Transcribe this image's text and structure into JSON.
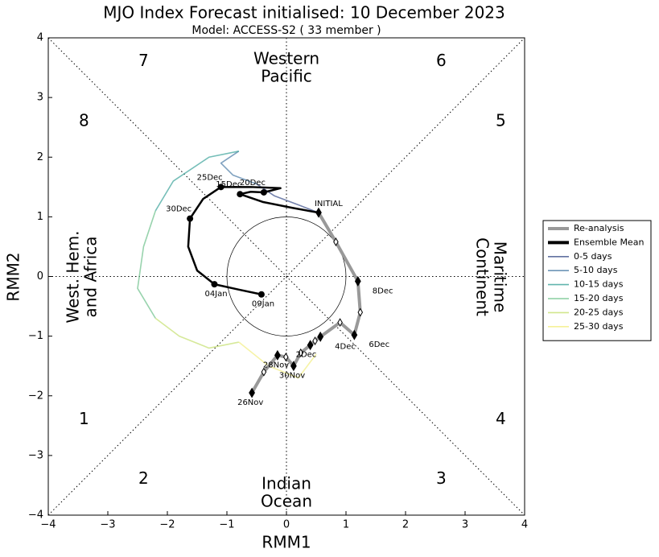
{
  "chart_data": {
    "type": "line",
    "title": "MJO Index Forecast initialised:  10  December 2023",
    "subtitle": "Model: ACCESS-S2 ( 33 member )",
    "xlabel": "RMM1",
    "ylabel": "RMM2",
    "xlim": [
      -4,
      4
    ],
    "ylim": [
      -4,
      4
    ],
    "xticks": [
      {
        "value": -4,
        "label": "−4"
      },
      {
        "value": -3,
        "label": "−3"
      },
      {
        "value": -2,
        "label": "−2"
      },
      {
        "value": -1,
        "label": "−1"
      },
      0,
      1,
      2,
      3,
      4
    ],
    "yticks": [
      {
        "value": -4,
        "label": "−4"
      },
      {
        "value": -3,
        "label": "−3"
      },
      {
        "value": -2,
        "label": "−2"
      },
      {
        "value": -1,
        "label": "−1"
      },
      0,
      1,
      2,
      3,
      4
    ],
    "legend": "right",
    "phases": [
      "1",
      "2",
      "3",
      "4",
      "5",
      "6",
      "7",
      "8"
    ],
    "regions": [
      {
        "lines": [
          "Western",
          "Pacific"
        ]
      },
      {
        "lines": [
          "Indian",
          "Ocean"
        ]
      },
      {
        "lines": [
          "West. Hem.",
          "and Africa"
        ]
      },
      {
        "lines": [
          "Maritime",
          "Continent"
        ]
      }
    ],
    "series": [
      {
        "name": "Re-analysis",
        "color": "#999999",
        "x": [
          -0.58,
          -0.38,
          -0.15,
          -0.01,
          0.12,
          0.24,
          0.4,
          0.48,
          0.57,
          0.9,
          1.14,
          1.24,
          1.2,
          0.83,
          0.54
        ],
        "values": [
          -1.95,
          -1.6,
          -1.32,
          -1.35,
          -1.5,
          -1.28,
          -1.15,
          -1.08,
          -1.01,
          -0.77,
          -0.98,
          -0.6,
          -0.08,
          0.58,
          1.07
        ],
        "labels": [
          "26Nov",
          null,
          "28Nov",
          null,
          "30Nov",
          null,
          "2Dec",
          null,
          "4Dec",
          null,
          "6Dec",
          null,
          "8Dec",
          null,
          "INITIAL"
        ]
      },
      {
        "name": "Ensemble Mean",
        "color": "#000000",
        "x": [
          0.54,
          0.1,
          -0.4,
          -0.78,
          -0.6,
          -0.38,
          -0.1,
          -0.6,
          -1.1,
          -1.4,
          -1.62,
          -1.65,
          -1.5,
          -1.21,
          -0.8,
          -0.42
        ],
        "values": [
          1.07,
          1.15,
          1.25,
          1.38,
          1.42,
          1.41,
          1.48,
          1.5,
          1.5,
          1.3,
          0.97,
          0.5,
          0.1,
          -0.13,
          -0.22,
          -0.3
        ],
        "labels": [
          null,
          null,
          null,
          "15Dec",
          null,
          "20Dec",
          null,
          null,
          "25Dec",
          null,
          "30Dec",
          null,
          null,
          "04Jan",
          null,
          "09Jan"
        ]
      },
      {
        "name": "0-5 days",
        "color": "#3b4f8a",
        "x": [
          0.54,
          0.2,
          -0.2,
          -0.5
        ],
        "values": [
          1.07,
          1.2,
          1.35,
          1.55
        ]
      },
      {
        "name": "5-10 days",
        "color": "#4a7aa5",
        "x": [
          -0.5,
          -0.9,
          -1.1,
          -0.8
        ],
        "values": [
          1.55,
          1.7,
          1.9,
          2.1
        ]
      },
      {
        "name": "10-15 days",
        "color": "#3aa39a",
        "x": [
          -0.8,
          -1.3,
          -1.9,
          -2.2
        ],
        "values": [
          2.1,
          2.0,
          1.6,
          1.1
        ]
      },
      {
        "name": "15-20 days",
        "color": "#6cc08a",
        "x": [
          -2.2,
          -2.4,
          -2.5,
          -2.2
        ],
        "values": [
          1.1,
          0.5,
          -0.2,
          -0.7
        ]
      },
      {
        "name": "20-25 days",
        "color": "#c5e06f",
        "x": [
          -2.2,
          -1.8,
          -1.3,
          -0.8
        ],
        "values": [
          -0.7,
          -1.0,
          -1.2,
          -1.1
        ]
      },
      {
        "name": "25-30 days",
        "color": "#f2ee80",
        "x": [
          -0.8,
          -0.3,
          0.2,
          0.5
        ],
        "values": [
          -1.1,
          -1.5,
          -1.7,
          -1.3
        ]
      }
    ]
  }
}
